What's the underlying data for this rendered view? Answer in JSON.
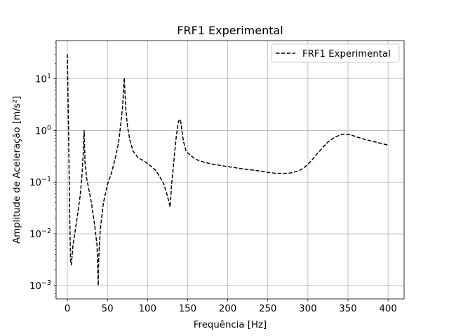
{
  "chart_data": {
    "type": "line",
    "title": "FRF1 Experimental",
    "xlabel": "Frequência [Hz]",
    "ylabel": "Amplitude de Aceleração [m/s²]",
    "xlim": [
      -14,
      420
    ],
    "ylim": [
      0.00055,
      55
    ],
    "yscale": "log",
    "grid": true,
    "legend_position": "upper right",
    "x_ticks": [
      0,
      50,
      100,
      150,
      200,
      250,
      300,
      350,
      400
    ],
    "x_tick_labels": [
      "0",
      "50",
      "100",
      "150",
      "200",
      "250",
      "300",
      "350",
      "400"
    ],
    "y_ticks": [
      0.001,
      0.01,
      0.1,
      1,
      10
    ],
    "y_tick_labels": [
      {
        "base": "10",
        "exp": "−3"
      },
      {
        "base": "10",
        "exp": "−2"
      },
      {
        "base": "10",
        "exp": "−1"
      },
      {
        "base": "10",
        "exp": "0"
      },
      {
        "base": "10",
        "exp": "1"
      }
    ],
    "series": [
      {
        "name": "FRF1 Experimental",
        "color": "#000000",
        "dash": "dashed",
        "x": [
          0,
          1.5,
          3,
          4,
          5,
          7,
          10,
          13,
          16,
          18,
          20,
          20.5,
          21,
          21.5,
          22,
          24,
          27,
          30,
          34,
          37,
          38,
          38.5,
          39,
          41,
          45,
          50,
          55,
          60,
          64,
          67,
          69,
          70,
          71,
          72,
          73,
          75,
          78,
          82,
          88,
          95,
          100,
          105,
          110,
          115,
          120,
          124,
          127,
          128,
          129,
          130,
          132,
          134,
          136,
          138,
          139,
          140,
          141,
          142,
          143,
          145,
          148,
          150,
          153,
          157,
          162,
          170,
          180,
          200,
          220,
          240,
          250,
          260,
          270,
          278,
          285,
          290,
          295,
          300,
          306,
          312,
          318,
          325,
          333,
          340,
          345,
          350,
          356,
          362,
          370,
          380,
          390,
          400
        ],
        "y": [
          30,
          1.0,
          0.02,
          0.003,
          0.0025,
          0.006,
          0.012,
          0.025,
          0.055,
          0.12,
          0.4,
          0.8,
          1.0,
          0.5,
          0.25,
          0.12,
          0.07,
          0.04,
          0.015,
          0.006,
          0.002,
          0.001,
          0.003,
          0.012,
          0.04,
          0.09,
          0.15,
          0.3,
          0.6,
          1.5,
          3.0,
          6.0,
          10.5,
          5.0,
          2.5,
          1.2,
          0.65,
          0.4,
          0.3,
          0.26,
          0.23,
          0.2,
          0.17,
          0.13,
          0.095,
          0.06,
          0.04,
          0.033,
          0.05,
          0.09,
          0.18,
          0.4,
          0.8,
          1.3,
          1.55,
          1.65,
          1.6,
          1.3,
          0.95,
          0.6,
          0.4,
          0.37,
          0.34,
          0.3,
          0.27,
          0.245,
          0.225,
          0.2,
          0.18,
          0.165,
          0.155,
          0.148,
          0.148,
          0.15,
          0.16,
          0.17,
          0.19,
          0.22,
          0.28,
          0.36,
          0.46,
          0.6,
          0.73,
          0.82,
          0.85,
          0.84,
          0.8,
          0.74,
          0.68,
          0.62,
          0.57,
          0.52
        ]
      }
    ]
  }
}
